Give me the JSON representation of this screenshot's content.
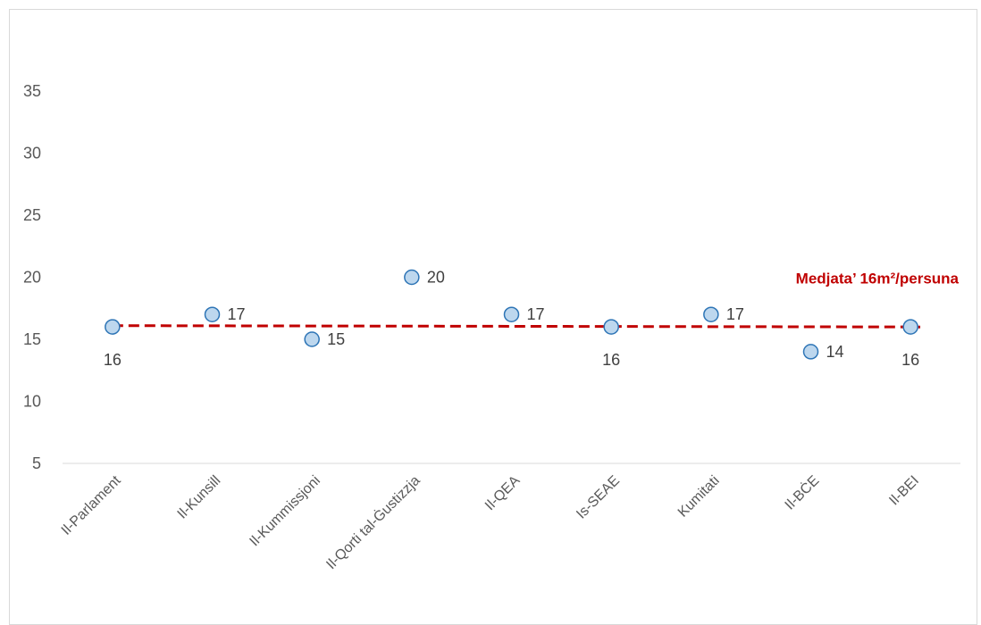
{
  "chart_data": {
    "type": "scatter",
    "title": "",
    "xlabel": "",
    "ylabel": "",
    "categories": [
      "Il-Parlament",
      "Il-Kunsill",
      "Il-Kummissjoni",
      "Il-Qorti tal-Ġustizzja",
      "Il-QEA",
      "Is-SEAE",
      "Kumitati",
      "Il-BĊE",
      "Il-BEI"
    ],
    "values": [
      16,
      17,
      15,
      20,
      17,
      16,
      17,
      14,
      16
    ],
    "label_position": [
      "below",
      "right",
      "right",
      "right",
      "right",
      "below",
      "right",
      "right",
      "below"
    ],
    "y_ticks": [
      5,
      10,
      15,
      20,
      25,
      30,
      35
    ],
    "ylim": [
      5,
      40
    ],
    "grid": false,
    "reference_line": {
      "value": 16.1,
      "label": "Medjata’ 16m²/persuna",
      "style": "dashed",
      "color": "#c00000"
    },
    "marker_fill": "#bdd7ee",
    "marker_stroke": "#2e75b6",
    "axis_color": "#d9d9d9"
  }
}
